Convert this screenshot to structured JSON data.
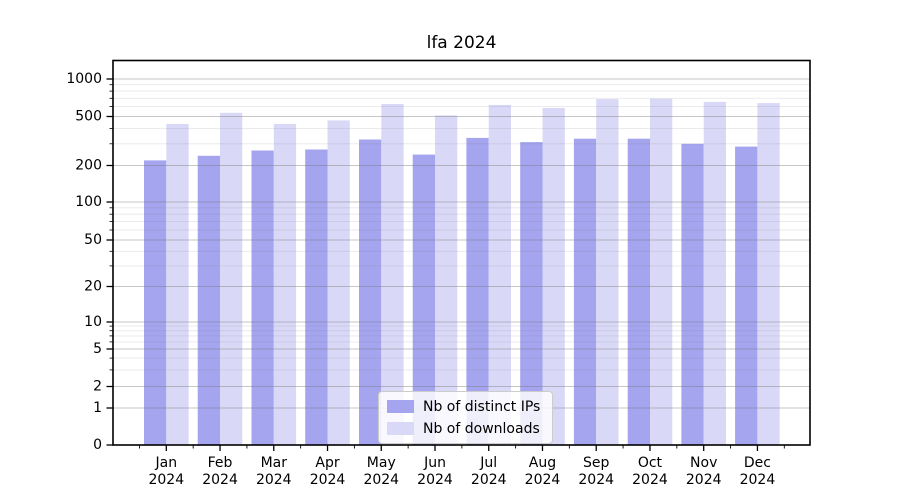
{
  "header": {
    "title": "lfa 2024"
  },
  "chart_data": {
    "type": "bar",
    "title": "lfa 2024",
    "x_categories": [
      "Jan",
      "Feb",
      "Mar",
      "Apr",
      "May",
      "Jun",
      "Jul",
      "Aug",
      "Sep",
      "Oct",
      "Nov",
      "Dec"
    ],
    "x_year_label": "2024",
    "series": [
      {
        "name": "Nb of distinct IPs",
        "color": "#a4a4ef",
        "values": [
          220,
          240,
          265,
          270,
          325,
          245,
          335,
          310,
          330,
          330,
          300,
          285
        ]
      },
      {
        "name": "Nb of downloads",
        "color": "#d9d9f7",
        "values": [
          435,
          535,
          435,
          465,
          630,
          510,
          620,
          585,
          690,
          695,
          655,
          640
        ]
      }
    ],
    "yscale": "symlog",
    "yticks": [
      0,
      1,
      2,
      5,
      10,
      20,
      50,
      100,
      200,
      500,
      1000
    ],
    "ylim": [
      0,
      1300
    ],
    "grid": "horizontal-major-and-minor",
    "legend_position": "lower center",
    "axis_color": "#000000",
    "major_grid_color": "#bdbdbd",
    "minor_grid_color": "#e8e8e8"
  }
}
